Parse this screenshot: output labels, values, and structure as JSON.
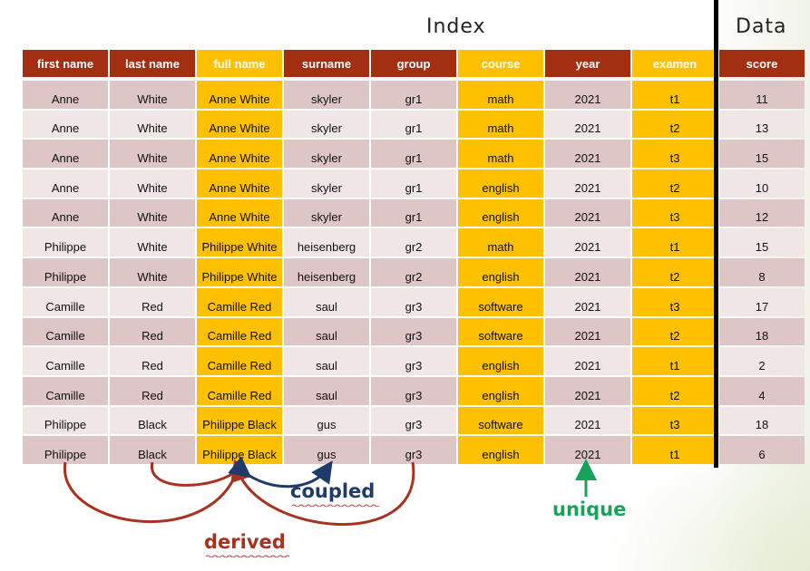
{
  "titles": {
    "index": "Index",
    "data": "Data"
  },
  "colors": {
    "header_dark": "#a32f13",
    "header_gold": "#ffc000",
    "row_a": "#dfc6c6",
    "row_b": "#f0e6e6",
    "derived": "#a8321f",
    "coupled": "#1f3b6b",
    "unique": "#17a35a"
  },
  "columns": [
    {
      "label": "first name",
      "style": "dark"
    },
    {
      "label": "last name",
      "style": "dark"
    },
    {
      "label": "full name",
      "style": "gold"
    },
    {
      "label": "surname",
      "style": "dark"
    },
    {
      "label": "group",
      "style": "dark"
    },
    {
      "label": "course",
      "style": "gold"
    },
    {
      "label": "year",
      "style": "dark"
    },
    {
      "label": "examen",
      "style": "gold"
    },
    {
      "label": "score",
      "style": "dark"
    }
  ],
  "rows": [
    [
      "Anne",
      "White",
      "Anne White",
      "skyler",
      "gr1",
      "math",
      "2021",
      "t1",
      "11"
    ],
    [
      "Anne",
      "White",
      "Anne White",
      "skyler",
      "gr1",
      "math",
      "2021",
      "t2",
      "13"
    ],
    [
      "Anne",
      "White",
      "Anne White",
      "skyler",
      "gr1",
      "math",
      "2021",
      "t3",
      "15"
    ],
    [
      "Anne",
      "White",
      "Anne White",
      "skyler",
      "gr1",
      "english",
      "2021",
      "t2",
      "10"
    ],
    [
      "Anne",
      "White",
      "Anne White",
      "skyler",
      "gr1",
      "english",
      "2021",
      "t3",
      "12"
    ],
    [
      "Philippe",
      "White",
      "Philippe White",
      "heisenberg",
      "gr2",
      "math",
      "2021",
      "t1",
      "15"
    ],
    [
      "Philippe",
      "White",
      "Philippe White",
      "heisenberg",
      "gr2",
      "english",
      "2021",
      "t2",
      "8"
    ],
    [
      "Camille",
      "Red",
      "Camille Red",
      "saul",
      "gr3",
      "software",
      "2021",
      "t3",
      "17"
    ],
    [
      "Camille",
      "Red",
      "Camille Red",
      "saul",
      "gr3",
      "software",
      "2021",
      "t2",
      "18"
    ],
    [
      "Camille",
      "Red",
      "Camille Red",
      "saul",
      "gr3",
      "english",
      "2021",
      "t1",
      "2"
    ],
    [
      "Camille",
      "Red",
      "Camille Red",
      "saul",
      "gr3",
      "english",
      "2021",
      "t2",
      "4"
    ],
    [
      "Philippe",
      "Black",
      "Philippe Black",
      "gus",
      "gr3",
      "software",
      "2021",
      "t3",
      "18"
    ],
    [
      "Philippe",
      "Black",
      "Philippe Black",
      "gus",
      "gr3",
      "english",
      "2021",
      "t1",
      "6"
    ]
  ],
  "annotations": {
    "coupled": "coupled",
    "derived": "derived",
    "unique": "unique"
  }
}
